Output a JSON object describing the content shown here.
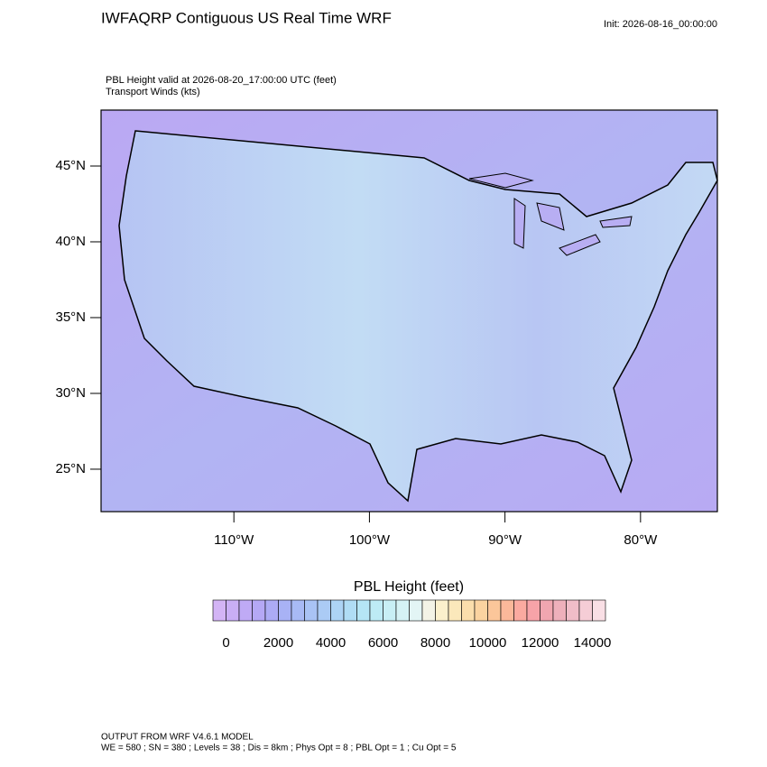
{
  "header": {
    "title": "IWFAQRP Contiguous US Real Time WRF",
    "init": "Init: 2026-08-16_00:00:00",
    "field_line": "PBL Height valid at 2026-08-20_17:00:00 UTC   (feet)",
    "wind_line": "Transport Winds   (kts)"
  },
  "map": {
    "xlim": [
      -119.8,
      -74.33
    ],
    "ylim": [
      22.2,
      48.69
    ],
    "xticks": [
      {
        "value": -110,
        "label": "110°W"
      },
      {
        "value": -100,
        "label": "100°W"
      },
      {
        "value": -90,
        "label": "90°W"
      },
      {
        "value": -80,
        "label": "80°W"
      }
    ],
    "yticks": [
      {
        "value": 45,
        "label": "45°N"
      },
      {
        "value": 40,
        "label": "40°N"
      },
      {
        "value": 35,
        "label": "35°N"
      },
      {
        "value": 30,
        "label": "30°N"
      },
      {
        "value": 25,
        "label": "25°N"
      }
    ]
  },
  "colorbar": {
    "title": "PBL Height  (feet)",
    "range": [
      -500,
      14500
    ],
    "ticks": [
      0,
      2000,
      4000,
      6000,
      8000,
      10000,
      12000,
      14000
    ],
    "colors": [
      "#d3b4f5",
      "#c9aef5",
      "#bfaaf5",
      "#b5a8f5",
      "#acabf5",
      "#a8b2f5",
      "#a8baf5",
      "#a9c3f5",
      "#abcbf5",
      "#add4f5",
      "#b0ddf5",
      "#b5e5f5",
      "#bdebf5",
      "#c8eff5",
      "#d5f2f5",
      "#e3f5f5",
      "#f3f3e6",
      "#fbf0cc",
      "#fbe8bb",
      "#fbdeac",
      "#fbd3a0",
      "#fbc69a",
      "#fbb89a",
      "#fbaaa0",
      "#f7a3a8",
      "#f0a6b0",
      "#eeb0bb",
      "#f0bdc8",
      "#f5cdd6",
      "#f9dfe5"
    ]
  },
  "footer": {
    "line1": "OUTPUT FROM WRF V4.6.1 MODEL",
    "line2": "WE = 580 ; SN = 380 ; Levels = 38 ; Dis = 8km ; Phys Opt = 8 ; PBL Opt = 1 ; Cu Opt = 5"
  }
}
